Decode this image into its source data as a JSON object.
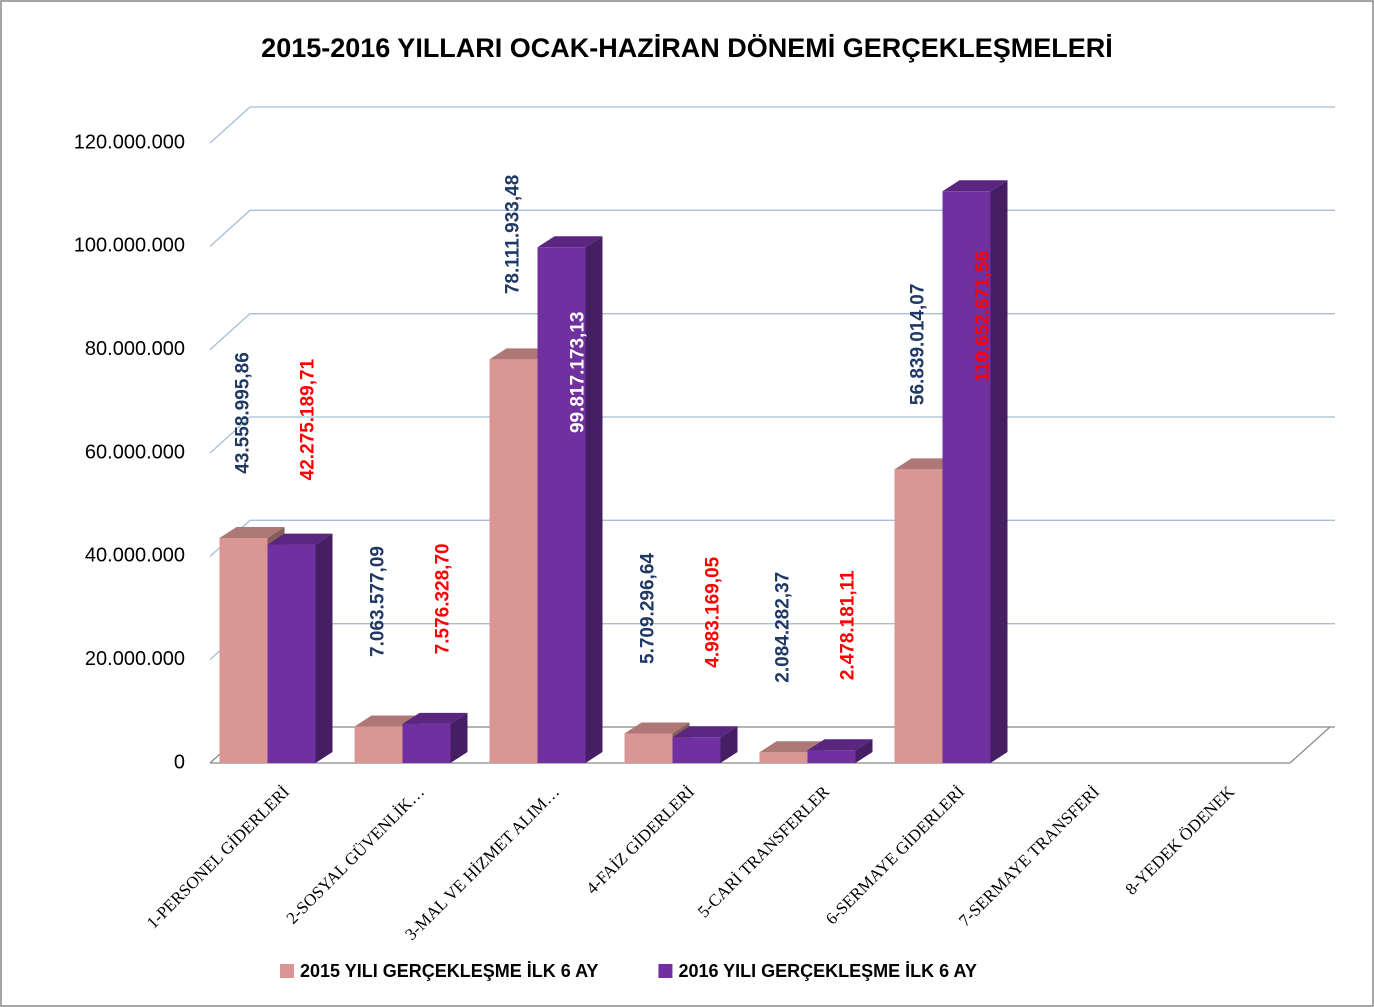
{
  "chart_data": {
    "type": "bar3d",
    "title": "2015-2016 YILLARI OCAK-HAZİRAN DÖNEMİ GERÇEKLEŞMELERİ",
    "categories": [
      "1-PERSONEL GİDERLERİ",
      "2-SOSYAL GÜVENLİK…",
      "3-MAL VE HİZMET ALIM…",
      "4-FAİZ  GİDERLERİ",
      "5-CARİ TRANSFERLER",
      "6-SERMAYE GİDERLERİ",
      "7-SERMAYE TRANSFERİ",
      "8-YEDEK ÖDENEK"
    ],
    "series": [
      {
        "name": "2015 YILI GERÇEKLEŞME İLK 6 AY",
        "color": "#d99694",
        "values": [
          43558995.86,
          7063577.09,
          78111933.48,
          5709296.64,
          2084282.37,
          56839014.07,
          null,
          null
        ],
        "value_labels": [
          "43.558.995,86",
          "7.063.577,09",
          "78.111.933,48",
          "5.709.296,64",
          "2.084.282,37",
          "56.839.014,07",
          null,
          null
        ],
        "label_colors": [
          "#1f3864",
          "#1f3864",
          "#1f3864",
          "#1f3864",
          "#1f3864",
          "#1f3864",
          null,
          null
        ]
      },
      {
        "name": "2016 YILI GERÇEKLEŞME İLK 6 AY",
        "color": "#7030a0",
        "values": [
          42275189.71,
          7576328.7,
          99817173.13,
          4983169.05,
          2478181.11,
          110652671.56,
          null,
          null
        ],
        "value_labels": [
          "42.275.189,71",
          "7.576.328,70",
          "99.817.173,13",
          "4.983.169,05",
          "2.478.181,11",
          "110.652.671,56",
          null,
          null
        ],
        "label_colors": [
          "#ff0000",
          "#ff0000",
          "#ffffff",
          "#ff0000",
          "#ff0000",
          "#ff0000",
          null,
          null
        ]
      }
    ],
    "ylim": [
      0,
      120000000
    ],
    "yticks": [
      0,
      {
        "value": 20000000,
        "label": "20.000.000"
      },
      {
        "value": 40000000,
        "label": "40.000.000"
      },
      {
        "value": 60000000,
        "label": "60.000.000"
      },
      {
        "value": 80000000,
        "label": "80.000.000"
      },
      {
        "value": 100000000,
        "label": "100.000.000"
      },
      {
        "value": 120000000,
        "label": "120.000.000"
      }
    ],
    "grid": true,
    "legend": "bottom"
  }
}
